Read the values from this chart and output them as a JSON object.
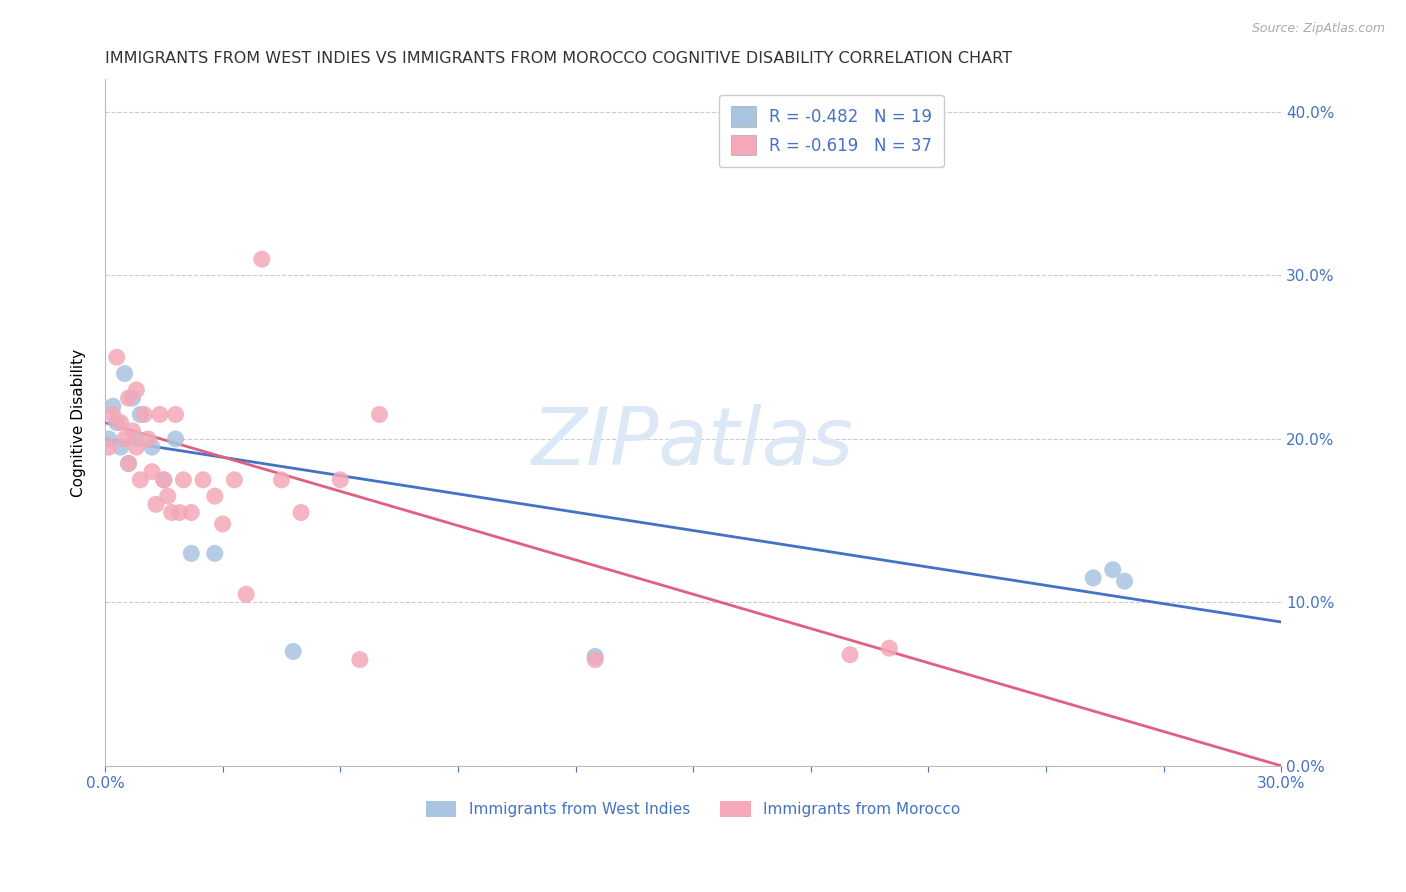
{
  "title": "IMMIGRANTS FROM WEST INDIES VS IMMIGRANTS FROM MOROCCO COGNITIVE DISABILITY CORRELATION CHART",
  "source": "Source: ZipAtlas.com",
  "ylabel": "Cognitive Disability",
  "watermark": "ZIPatlas",
  "legend_blue_label": "R = -0.482   N = 19",
  "legend_pink_label": "R = -0.619   N = 37",
  "blue_color": "#a8c4e0",
  "pink_color": "#f4a8b8",
  "blue_line_color": "#4472c4",
  "pink_line_color": "#e06080",
  "axis_label_color": "#4472c4",
  "title_color": "#333333",
  "grid_color": "#cccccc",
  "xlim": [
    0,
    0.3
  ],
  "ylim": [
    0,
    0.42
  ],
  "xtick_positions": [
    0.0,
    0.03,
    0.06,
    0.09,
    0.12,
    0.15,
    0.18,
    0.21,
    0.24,
    0.27,
    0.3
  ],
  "xtick_labels_show": {
    "0.0": "0.0%",
    "0.30": "30.0%"
  },
  "yticks": [
    0.0,
    0.1,
    0.2,
    0.3,
    0.4
  ],
  "blue_x": [
    0.001,
    0.002,
    0.003,
    0.004,
    0.005,
    0.006,
    0.007,
    0.008,
    0.009,
    0.012,
    0.015,
    0.018,
    0.022,
    0.028,
    0.048,
    0.125,
    0.252,
    0.257,
    0.26
  ],
  "blue_y": [
    0.2,
    0.22,
    0.21,
    0.195,
    0.24,
    0.185,
    0.225,
    0.2,
    0.215,
    0.195,
    0.175,
    0.2,
    0.13,
    0.13,
    0.07,
    0.067,
    0.115,
    0.12,
    0.113
  ],
  "pink_x": [
    0.001,
    0.002,
    0.003,
    0.004,
    0.005,
    0.006,
    0.006,
    0.007,
    0.008,
    0.008,
    0.009,
    0.01,
    0.011,
    0.012,
    0.013,
    0.014,
    0.015,
    0.016,
    0.017,
    0.018,
    0.019,
    0.02,
    0.022,
    0.025,
    0.028,
    0.03,
    0.033,
    0.036,
    0.04,
    0.045,
    0.05,
    0.06,
    0.065,
    0.07,
    0.125,
    0.19,
    0.2
  ],
  "pink_y": [
    0.195,
    0.215,
    0.25,
    0.21,
    0.2,
    0.225,
    0.185,
    0.205,
    0.195,
    0.23,
    0.175,
    0.215,
    0.2,
    0.18,
    0.16,
    0.215,
    0.175,
    0.165,
    0.155,
    0.215,
    0.155,
    0.175,
    0.155,
    0.175,
    0.165,
    0.148,
    0.175,
    0.105,
    0.31,
    0.175,
    0.155,
    0.175,
    0.065,
    0.215,
    0.065,
    0.068,
    0.072
  ],
  "bottom_legend_blue": "Immigrants from West Indies",
  "bottom_legend_pink": "Immigrants from Morocco",
  "blue_line_x0": 0.0,
  "blue_line_y0": 0.2,
  "blue_line_x1": 0.3,
  "blue_line_y1": 0.088,
  "pink_line_x0": 0.0,
  "pink_line_y0": 0.21,
  "pink_line_x1": 0.3,
  "pink_line_y1": 0.0
}
